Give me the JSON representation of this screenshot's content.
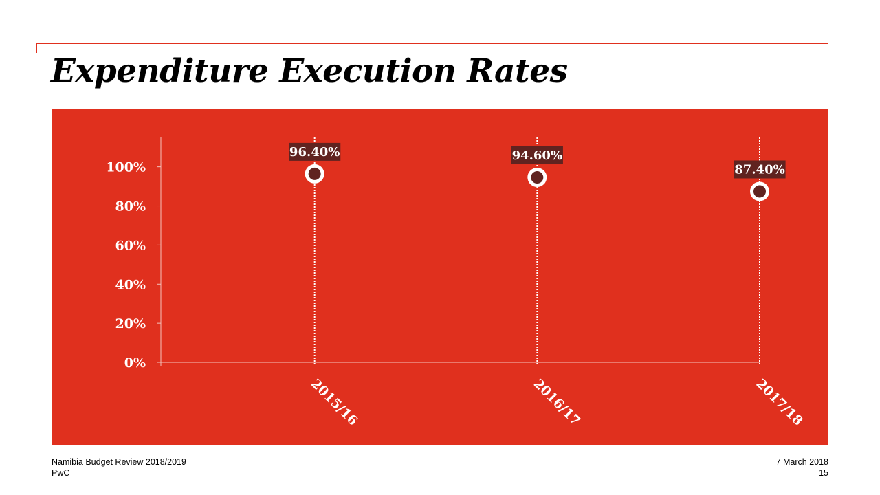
{
  "slide": {
    "title": "Expenditure Execution Rates"
  },
  "colors": {
    "accent": "#e0301e",
    "label_box": "#602320",
    "marker_fill": "#602320",
    "text_light": "#ffffff"
  },
  "chart_data": {
    "type": "scatter",
    "categories": [
      "2015/16",
      "2016/17",
      "2017/18"
    ],
    "values": [
      96.4,
      94.6,
      87.4
    ],
    "data_labels": [
      "96.40%",
      "94.60%",
      "87.40%"
    ],
    "y_ticks": [
      0,
      20,
      40,
      60,
      80,
      100
    ],
    "y_tick_labels": [
      "0%",
      "20%",
      "40%",
      "60%",
      "80%",
      "100%"
    ],
    "ylim": [
      0,
      115
    ],
    "grid": false,
    "drop_lines": true,
    "legend": "none"
  },
  "footer": {
    "report_name": "Namibia Budget Review 2018/2019",
    "company": "PwC",
    "date": "7 March 2018",
    "page_number": "15"
  }
}
